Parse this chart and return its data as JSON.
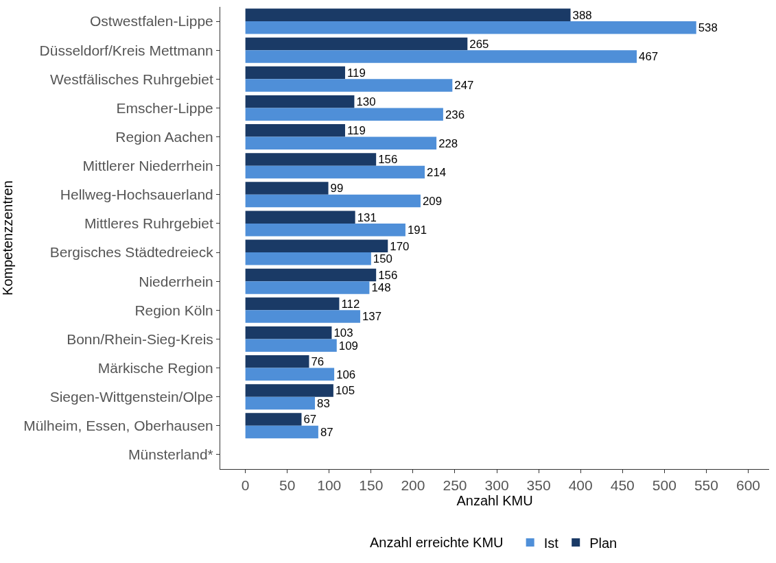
{
  "chart_data": {
    "type": "bar",
    "orientation": "horizontal",
    "xlabel": "Anzahl KMU",
    "ylabel": "Kompetenzzentren",
    "legend_title": "Anzahl erreichte KMU",
    "legend": "bottom",
    "grid": false,
    "data_labels": true,
    "categories": [
      "Ostwestfalen-Lippe",
      "Düsseldorf/Kreis Mettmann",
      "Westfälisches Ruhrgebiet",
      "Emscher-Lippe",
      "Region Aachen",
      "Mittlerer Niederrhein",
      "Hellweg-Hochsauerland",
      "Mittleres Ruhrgebiet",
      "Bergisches Städtedreieck",
      "Niederrhein",
      "Region Köln",
      "Bonn/Rhein-Sieg-Kreis",
      "Märkische Region",
      "Siegen-Wittgenstein/Olpe",
      "Mülheim, Essen, Oberhausen",
      "Münsterland*"
    ],
    "series": [
      {
        "name": "Plan",
        "color": "#1a3a66",
        "values": [
          388,
          265,
          119,
          130,
          119,
          156,
          99,
          131,
          170,
          156,
          112,
          103,
          76,
          105,
          67,
          null
        ]
      },
      {
        "name": "Ist",
        "color": "#4f8fd8",
        "values": [
          538,
          467,
          247,
          236,
          228,
          214,
          209,
          191,
          150,
          148,
          137,
          109,
          106,
          83,
          87,
          null
        ]
      }
    ],
    "xlim": [
      -30,
      625
    ],
    "xticks": [
      0,
      50,
      100,
      150,
      200,
      250,
      300,
      350,
      400,
      450,
      500,
      550,
      600
    ]
  }
}
